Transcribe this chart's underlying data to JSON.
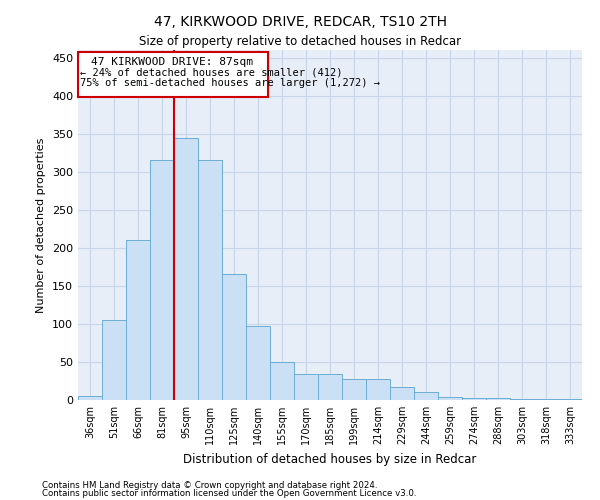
{
  "title": "47, KIRKWOOD DRIVE, REDCAR, TS10 2TH",
  "subtitle": "Size of property relative to detached houses in Redcar",
  "xlabel": "Distribution of detached houses by size in Redcar",
  "ylabel": "Number of detached properties",
  "footnote1": "Contains HM Land Registry data © Crown copyright and database right 2024.",
  "footnote2": "Contains public sector information licensed under the Open Government Licence v3.0.",
  "categories": [
    "36sqm",
    "51sqm",
    "66sqm",
    "81sqm",
    "95sqm",
    "110sqm",
    "125sqm",
    "140sqm",
    "155sqm",
    "170sqm",
    "185sqm",
    "199sqm",
    "214sqm",
    "229sqm",
    "244sqm",
    "259sqm",
    "274sqm",
    "288sqm",
    "303sqm",
    "318sqm",
    "333sqm"
  ],
  "values": [
    5,
    105,
    210,
    315,
    345,
    315,
    165,
    97,
    50,
    34,
    34,
    27,
    27,
    17,
    10,
    4,
    3,
    2,
    1,
    1,
    1
  ],
  "bar_color": "#cce0f5",
  "bar_edge_color": "#6aaed6",
  "grid_color": "#c8d4e8",
  "background_color": "#e8eef8",
  "annotation_box_color": "#cc0000",
  "vline_color": "#cc0000",
  "vline_x_index": 3.5,
  "annotation_text1": "47 KIRKWOOD DRIVE: 87sqm",
  "annotation_text2": "← 24% of detached houses are smaller (412)",
  "annotation_text3": "75% of semi-detached houses are larger (1,272) →",
  "ylim": [
    0,
    460
  ],
  "yticks": [
    0,
    50,
    100,
    150,
    200,
    250,
    300,
    350,
    400,
    450
  ]
}
